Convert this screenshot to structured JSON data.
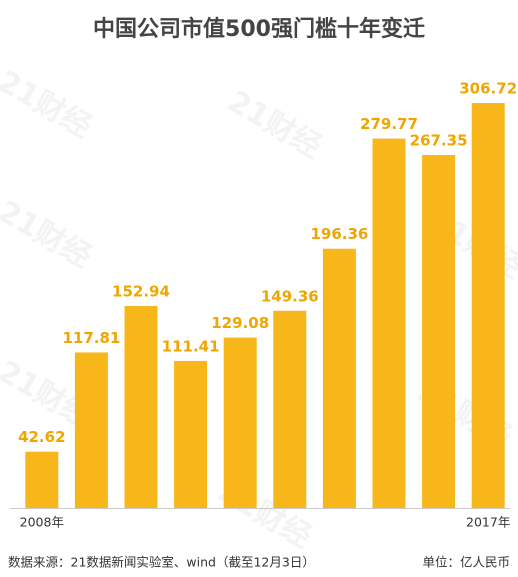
{
  "chart_data": {
    "type": "bar",
    "title": "中国公司市值500强门槛十年变迁",
    "categories": [
      "2008年",
      null,
      null,
      null,
      null,
      null,
      null,
      null,
      null,
      "2017年"
    ],
    "values": [
      42.62,
      117.81,
      152.94,
      111.41,
      129.08,
      149.36,
      196.36,
      279.77,
      267.35,
      306.72
    ],
    "color": "#f7b71a",
    "label_color": "#f0a500",
    "source": "数据来源：21数据新闻实验室、wind（截至12月3日）",
    "unit": "单位：亿人民币",
    "watermark": "21财经"
  }
}
